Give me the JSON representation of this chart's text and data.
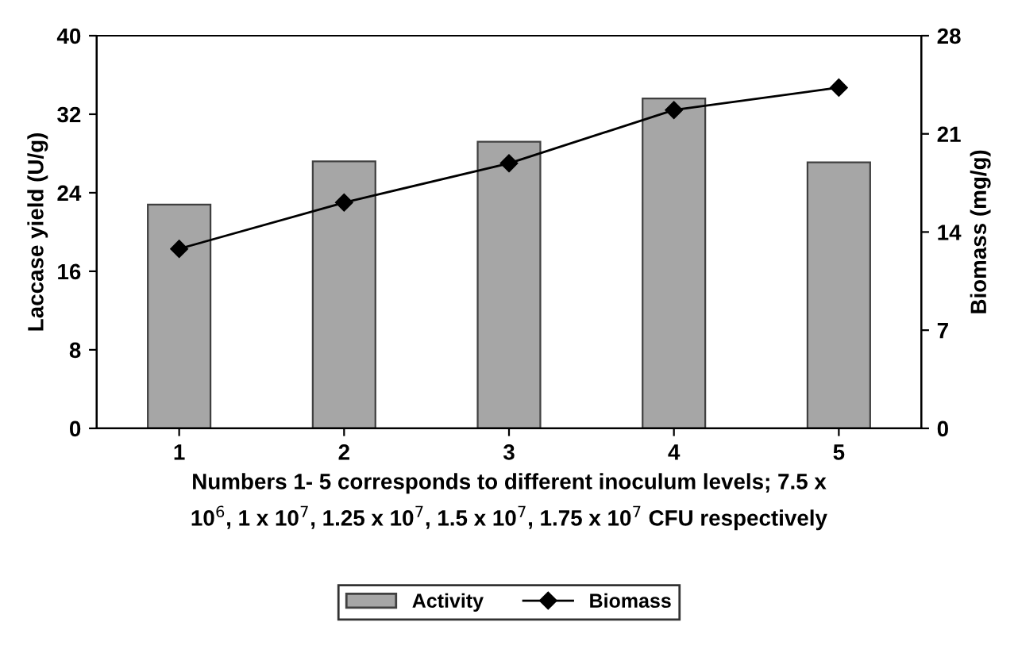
{
  "chart_data": {
    "type": "bar",
    "categories": [
      "1",
      "2",
      "3",
      "4",
      "5"
    ],
    "series": [
      {
        "name": "Activity",
        "color": "#a6a6a6",
        "values": [
          22.8,
          27.2,
          29.2,
          33.6,
          27.1
        ]
      },
      {
        "name": "Biomass",
        "type": "line",
        "axis": "y2",
        "color": "#000000",
        "marker": "diamond",
        "values": [
          12.8,
          16.1,
          18.9,
          22.7,
          24.3
        ]
      }
    ],
    "xlabel": "Numbers 1- 5 corresponds to different inoculum levels; 7.5 x\n10$^{6}$, 1 x 10$^{7}$, 1.25 x 10$^{7}$, 1.5 x 10$^{7}$, 1.75 x 10$^{7}$ CFU respectively",
    "ylabel": "Laccase yield (U/g)",
    "y2label": "Biomass (mg/g)",
    "ylim": [
      0,
      40
    ],
    "yticks": [
      0,
      8,
      16,
      24,
      32,
      40
    ],
    "y2lim": [
      0,
      28
    ],
    "y2ticks": [
      0,
      7,
      14,
      21,
      28
    ],
    "legend": "bottom",
    "grid": false
  }
}
